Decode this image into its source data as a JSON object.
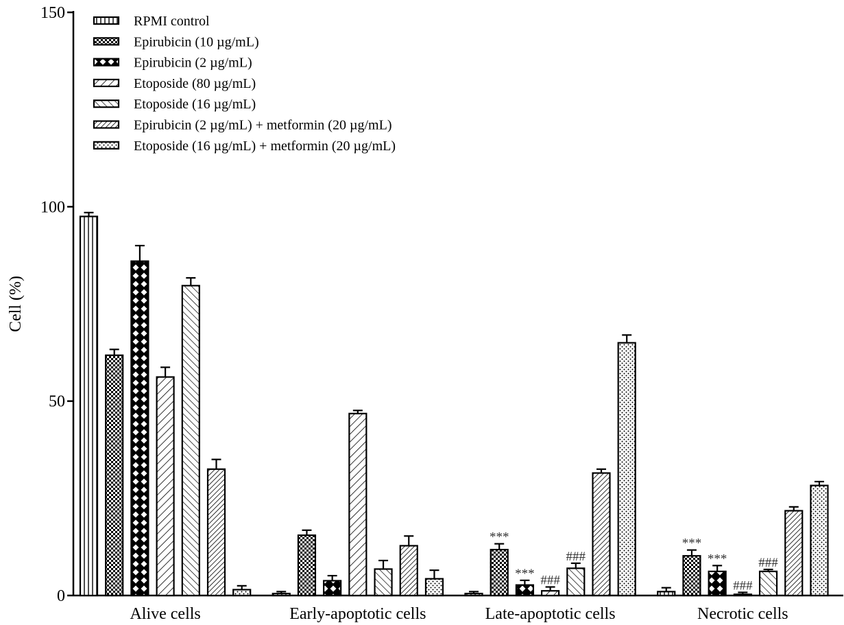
{
  "chart_data": {
    "type": "bar",
    "title": "",
    "xlabel": "",
    "ylabel": "Cell (%)",
    "ylim": [
      0,
      150
    ],
    "yticks": [
      0,
      50,
      100,
      150
    ],
    "grid": false,
    "legend_position": "top-left",
    "categories": [
      "Alive cells",
      "Early-apoptotic cells",
      "Late-apoptotic cells",
      "Necrotic cells"
    ],
    "series": [
      {
        "name": "RPMI control",
        "pattern": "vertical-lines",
        "values": [
          97.5,
          0.5,
          0.5,
          1.0
        ],
        "errors": [
          1.0,
          0.5,
          0.5,
          1.0
        ]
      },
      {
        "name": "Epirubicin (10 µg/mL)",
        "pattern": "checker",
        "values": [
          61.8,
          15.5,
          11.8,
          10.2
        ],
        "errors": [
          1.5,
          1.3,
          1.5,
          1.5
        ]
      },
      {
        "name": "Epirubicin (2 µg/mL)",
        "pattern": "cross-hatch-dark",
        "values": [
          86.0,
          3.8,
          2.7,
          6.2
        ],
        "errors": [
          4.0,
          1.3,
          1.2,
          1.5
        ]
      },
      {
        "name": "Etoposide (80 µg/mL)",
        "pattern": "diagonal-forward",
        "values": [
          56.2,
          46.8,
          1.2,
          0.3
        ],
        "errors": [
          2.5,
          0.8,
          1.0,
          0.5
        ]
      },
      {
        "name": "Etoposide (16 µg/mL)",
        "pattern": "diagonal-back",
        "values": [
          79.7,
          6.8,
          7.0,
          6.2
        ],
        "errors": [
          2.0,
          2.2,
          1.3,
          0.5
        ]
      },
      {
        "name": "Epirubicin (2 µg/mL) + metformin (20 µg/mL)",
        "pattern": "diagonal-dense",
        "values": [
          32.5,
          12.8,
          31.5,
          21.8
        ],
        "errors": [
          2.5,
          2.5,
          1.0,
          1.0
        ]
      },
      {
        "name": "Etoposide (16 µg/mL) + metformin (20 µg/mL)",
        "pattern": "dots",
        "values": [
          1.5,
          4.3,
          65.0,
          28.3
        ],
        "errors": [
          1.0,
          2.2,
          2.0,
          1.0
        ]
      }
    ],
    "annotations": [
      {
        "category": "Late-apoptotic cells",
        "series": 1,
        "text": "***"
      },
      {
        "category": "Late-apoptotic cells",
        "series": 2,
        "text": "***"
      },
      {
        "category": "Late-apoptotic cells",
        "series": 3,
        "text": "###"
      },
      {
        "category": "Late-apoptotic cells",
        "series": 4,
        "text": "###"
      },
      {
        "category": "Necrotic cells",
        "series": 1,
        "text": "***"
      },
      {
        "category": "Necrotic cells",
        "series": 2,
        "text": "***"
      },
      {
        "category": "Necrotic cells",
        "series": 3,
        "text": "###"
      },
      {
        "category": "Necrotic cells",
        "series": 4,
        "text": "###"
      }
    ]
  }
}
